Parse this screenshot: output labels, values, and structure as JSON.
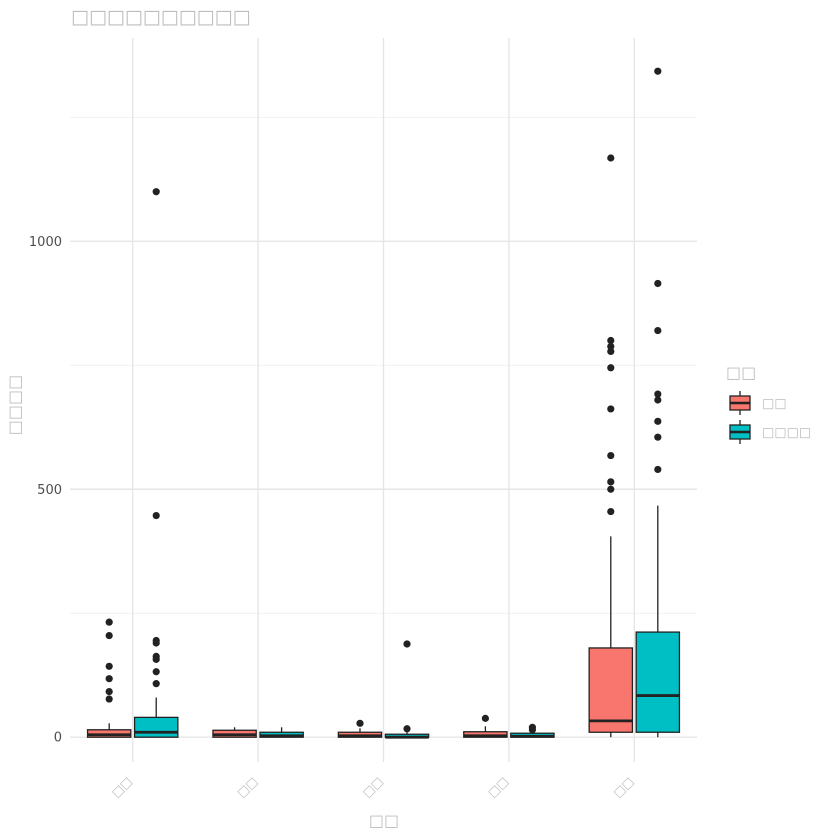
{
  "chart_data": {
    "type": "box",
    "title": "□□□□□□□□□□",
    "xlabel": "□□",
    "ylabel": "□□□□",
    "categories": [
      "□□",
      "□□",
      "□□",
      "□□",
      "□□"
    ],
    "y_ticks": [
      0,
      500,
      1000
    ],
    "ylim": [
      -50,
      1410
    ],
    "grid": true,
    "legend": {
      "title": "□□",
      "position": "right",
      "entries": [
        {
          "label": "□□",
          "color": "#F8766D"
        },
        {
          "label": "□□□□",
          "color": "#00BFC4"
        }
      ]
    },
    "series": [
      {
        "name": "□□",
        "color": "#F8766D",
        "boxes": [
          {
            "q1": 0,
            "median": 5,
            "q3": 15,
            "whisker_low": 0,
            "whisker_high": 28,
            "outliers": [
              77,
              92,
              118,
              143,
              205,
              232
            ]
          },
          {
            "q1": 0,
            "median": 5,
            "q3": 14,
            "whisker_low": 0,
            "whisker_high": 20,
            "outliers": []
          },
          {
            "q1": 0,
            "median": 3,
            "q3": 10,
            "whisker_low": 0,
            "whisker_high": 18,
            "outliers": [
              28
            ]
          },
          {
            "q1": 0,
            "median": 3,
            "q3": 11,
            "whisker_low": 0,
            "whisker_high": 22,
            "outliers": [
              38
            ]
          },
          {
            "q1": 10,
            "median": 33,
            "q3": 180,
            "whisker_low": 0,
            "whisker_high": 405,
            "outliers": [
              455,
              500,
              515,
              568,
              662,
              745,
              778,
              788,
              800,
              1168
            ]
          }
        ]
      },
      {
        "name": "□□□□",
        "color": "#00BFC4",
        "boxes": [
          {
            "q1": 0,
            "median": 10,
            "q3": 40,
            "whisker_low": 0,
            "whisker_high": 80,
            "outliers": [
              108,
              132,
              157,
              163,
              190,
              195,
              447,
              1100
            ]
          },
          {
            "q1": 0,
            "median": 3,
            "q3": 10,
            "whisker_low": 0,
            "whisker_high": 20,
            "outliers": []
          },
          {
            "q1": 0,
            "median": 0,
            "q3": 6,
            "whisker_low": 0,
            "whisker_high": 10,
            "outliers": [
              17,
              188
            ]
          },
          {
            "q1": 0,
            "median": 2,
            "q3": 8,
            "whisker_low": 0,
            "whisker_high": 14,
            "outliers": [
              15,
              20
            ]
          },
          {
            "q1": 10,
            "median": 84,
            "q3": 212,
            "whisker_low": 0,
            "whisker_high": 467,
            "outliers": [
              540,
              605,
              637,
              680,
              692,
              820,
              915,
              1343
            ]
          }
        ]
      }
    ]
  }
}
